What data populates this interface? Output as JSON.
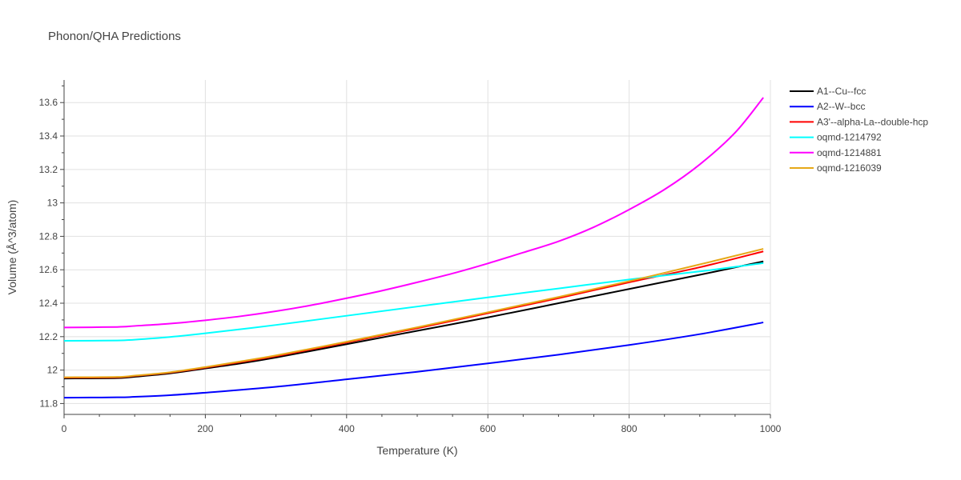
{
  "chart_data": {
    "type": "line",
    "title": "Phonon/QHA Predictions",
    "xlabel": "Temperature (K)",
    "ylabel": "Volume (Å^3/atom)",
    "xlim": [
      0,
      1000
    ],
    "ylim": [
      11.735,
      13.735
    ],
    "x_ticks": [
      0,
      200,
      400,
      600,
      800,
      1000
    ],
    "x_tick_labels": [
      "0",
      "200",
      "400",
      "600",
      "800",
      "1000"
    ],
    "y_ticks": [
      11.8,
      12,
      12.2,
      12.4,
      12.6,
      12.8,
      13,
      13.2,
      13.4,
      13.6
    ],
    "y_tick_labels": [
      "11.8",
      "12",
      "12.2",
      "12.4",
      "12.6",
      "12.8",
      "13",
      "13.2",
      "13.4",
      "13.6"
    ],
    "grid": true,
    "legend_position": "top-right outside",
    "series": [
      {
        "name": "A1--Cu--fcc",
        "color": "#000000",
        "x": [
          0,
          75,
          100,
          150,
          200,
          250,
          300,
          400,
          500,
          600,
          700,
          800,
          900,
          990
        ],
        "y": [
          11.95,
          11.952,
          11.96,
          11.98,
          12.01,
          12.04,
          12.075,
          12.155,
          12.235,
          12.315,
          12.4,
          12.485,
          12.57,
          12.65
        ]
      },
      {
        "name": "A2--W--bcc",
        "color": "#0000ff",
        "x": [
          0,
          75,
          100,
          150,
          200,
          300,
          400,
          500,
          600,
          700,
          800,
          900,
          990
        ],
        "y": [
          11.835,
          11.837,
          11.84,
          11.85,
          11.865,
          11.9,
          11.945,
          11.99,
          12.04,
          12.092,
          12.15,
          12.215,
          12.285
        ]
      },
      {
        "name": "A3'--alpha-La--double-hcp",
        "color": "#ff0000",
        "x": [
          0,
          75,
          100,
          150,
          200,
          250,
          300,
          400,
          500,
          600,
          700,
          800,
          900,
          990
        ],
        "y": [
          11.955,
          11.957,
          11.965,
          11.985,
          12.015,
          12.048,
          12.083,
          12.165,
          12.25,
          12.34,
          12.43,
          12.525,
          12.615,
          12.71
        ]
      },
      {
        "name": "oqmd-1214792",
        "color": "#00ffff",
        "x": [
          0,
          75,
          100,
          150,
          200,
          300,
          400,
          500,
          600,
          700,
          800,
          900,
          990
        ],
        "y": [
          12.175,
          12.177,
          12.182,
          12.198,
          12.22,
          12.27,
          12.325,
          12.38,
          12.435,
          12.488,
          12.542,
          12.59,
          12.64
        ]
      },
      {
        "name": "oqmd-1214881",
        "color": "#ff00ff",
        "x": [
          0,
          75,
          100,
          150,
          200,
          250,
          300,
          350,
          400,
          450,
          500,
          550,
          600,
          650,
          700,
          750,
          800,
          850,
          900,
          950,
          990
        ],
        "y": [
          12.255,
          12.258,
          12.264,
          12.278,
          12.298,
          12.322,
          12.352,
          12.388,
          12.43,
          12.475,
          12.525,
          12.578,
          12.638,
          12.703,
          12.77,
          12.855,
          12.96,
          13.08,
          13.23,
          13.42,
          13.63
        ]
      },
      {
        "name": "oqmd-1216039",
        "color": "#e6a817",
        "x": [
          0,
          75,
          100,
          150,
          200,
          250,
          300,
          400,
          500,
          600,
          700,
          800,
          900,
          990
        ],
        "y": [
          11.957,
          11.959,
          11.967,
          11.987,
          12.018,
          12.052,
          12.088,
          12.17,
          12.256,
          12.346,
          12.437,
          12.532,
          12.632,
          12.725
        ]
      }
    ]
  }
}
